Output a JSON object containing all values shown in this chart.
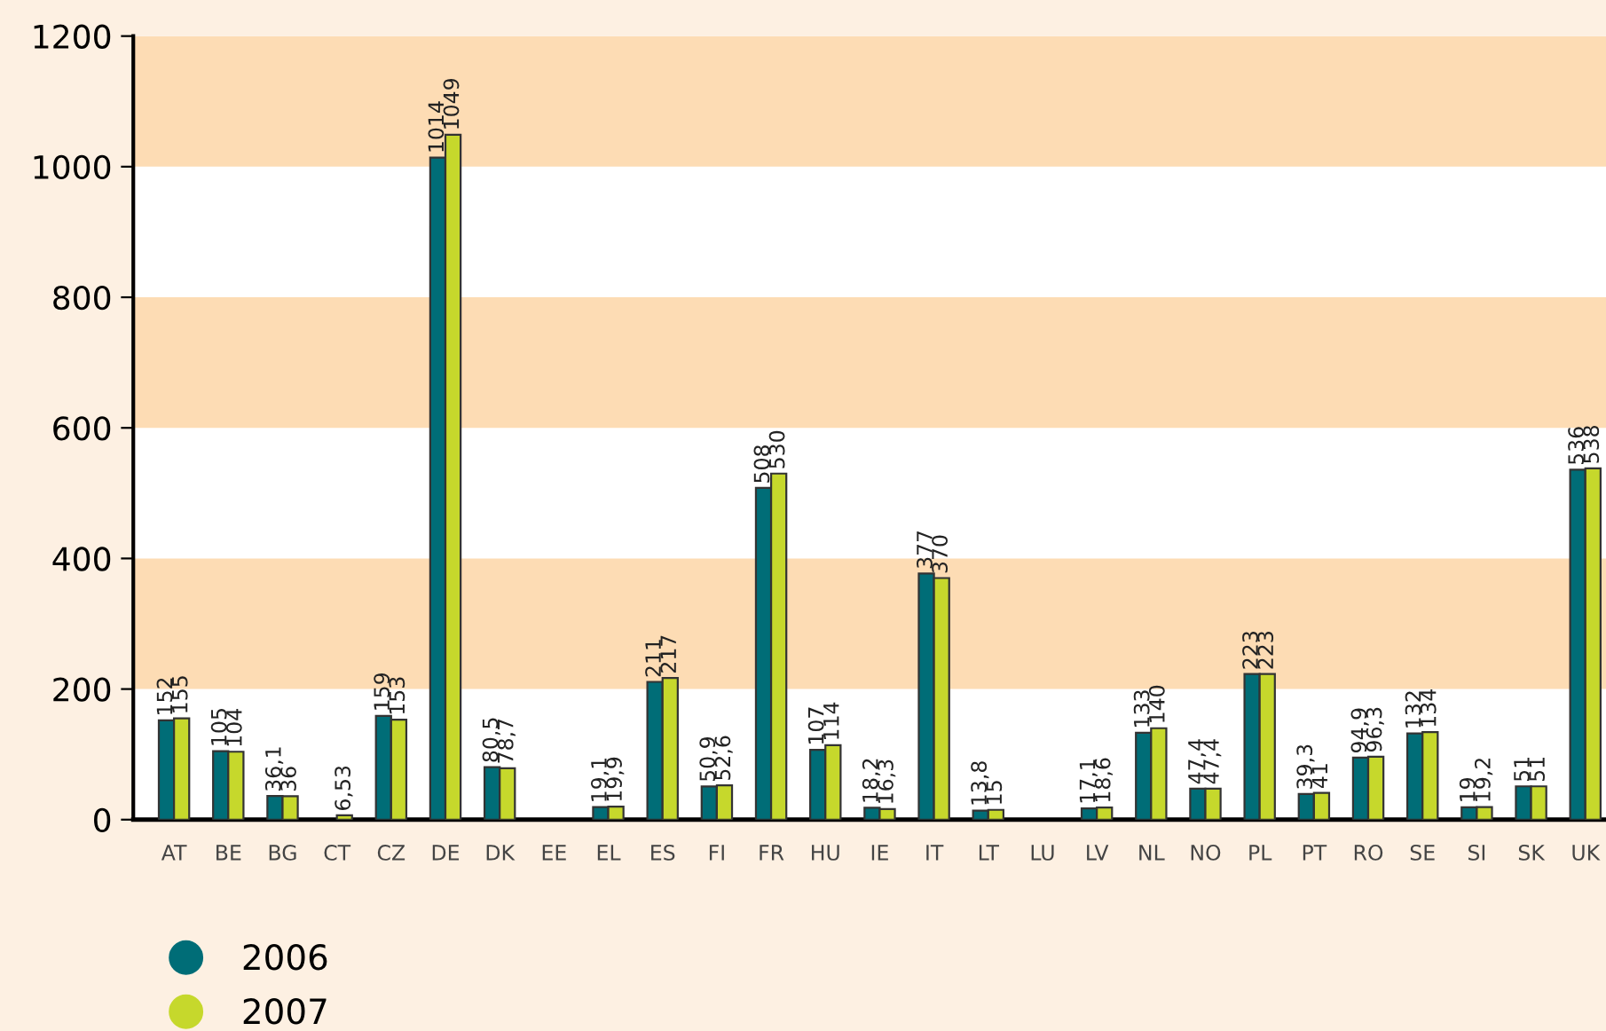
{
  "chart_data": {
    "type": "bar",
    "categories": [
      "AT",
      "BE",
      "BG",
      "CT",
      "CZ",
      "DE",
      "DK",
      "EE",
      "EL",
      "ES",
      "FI",
      "FR",
      "HU",
      "IE",
      "IT",
      "LT",
      "LU",
      "LV",
      "NL",
      "NO",
      "PL",
      "PT",
      "RO",
      "SE",
      "SI",
      "SK",
      "UK"
    ],
    "series": [
      {
        "name": "2006",
        "color": "#006d77",
        "values": [
          152,
          105,
          36.1,
          null,
          159,
          1014,
          80.5,
          null,
          19.1,
          211,
          50.9,
          508,
          107,
          18.2,
          377,
          13.8,
          null,
          17.1,
          133,
          47.4,
          223,
          39.3,
          94.9,
          132,
          19,
          51,
          536
        ],
        "value_labels": [
          "152",
          "105",
          "36,1",
          null,
          "159",
          "1014",
          "80,5",
          null,
          "19,1",
          "211",
          "50,9",
          "508",
          "107",
          "18,2",
          "377",
          "13,8",
          null,
          "17,1",
          "133",
          "47,4",
          "223",
          "39,3",
          "94,9",
          "132",
          "19",
          "51",
          "536"
        ]
      },
      {
        "name": "2007",
        "color": "#c6d82c",
        "values": [
          155,
          104,
          36,
          6.53,
          153,
          1049,
          78.7,
          null,
          19.9,
          217,
          52.6,
          530,
          114,
          16.3,
          370,
          15,
          null,
          18.6,
          140,
          47.4,
          223,
          41,
          96.3,
          134,
          19.2,
          51,
          538
        ],
        "value_labels": [
          "155",
          "104",
          "36",
          "6,53",
          "153",
          "1049",
          "78,7",
          null,
          "19,9",
          "217",
          "52,6",
          "530",
          "114",
          "16,3",
          "370",
          "15",
          null,
          "18,6",
          "140",
          "47,4",
          "223",
          "41",
          "96,3",
          "134",
          "19,2",
          "51",
          "538"
        ]
      }
    ],
    "ylim": [
      0,
      1200
    ],
    "yticks": [
      0,
      200,
      400,
      600,
      800,
      1000,
      1200
    ],
    "grid": false,
    "legend": "bottom left",
    "bands": [
      {
        "axis": "y",
        "from": 200,
        "to": 400,
        "color": "#fddcb4"
      },
      {
        "axis": "y",
        "from": 600,
        "to": 800,
        "color": "#fddcb4"
      },
      {
        "axis": "y",
        "from": 1000,
        "to": 1200,
        "color": "#fddcb4"
      }
    ]
  }
}
